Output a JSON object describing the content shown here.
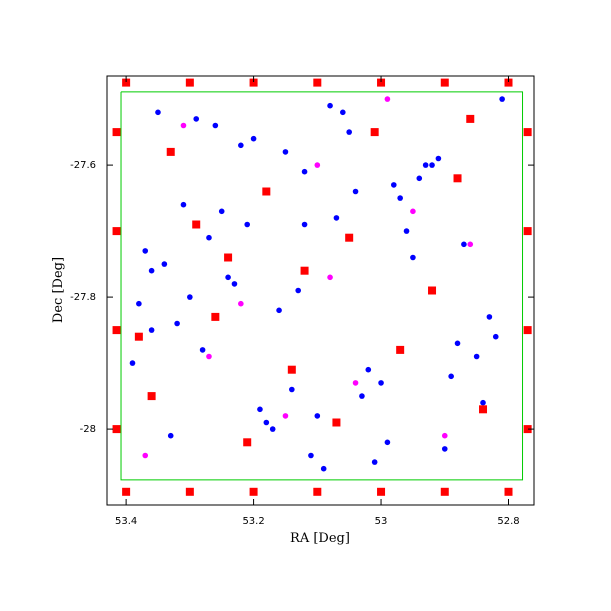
{
  "chart_data": {
    "type": "scatter",
    "xlabel": "RA [Deg]",
    "ylabel": "Dec [Deg]",
    "xlim": [
      53.43,
      52.76
    ],
    "ylim": [
      -28.115,
      -27.465
    ],
    "xticks": [
      53.4,
      53.2,
      53,
      52.8
    ],
    "yticks": [
      -27.6,
      -27.8,
      -28
    ],
    "series": [
      {
        "color": "#0000ff",
        "marker": "circle",
        "x": [
          53.35,
          53.12,
          52.95,
          53.28,
          52.84,
          53.05,
          53.21,
          53.38,
          52.9,
          53.15,
          53.02,
          53.31,
          52.81,
          53.24,
          53.09,
          52.98,
          53.36,
          53.18,
          52.87,
          53.26,
          53.0,
          53.13,
          52.93,
          53.33,
          53.07,
          52.83,
          53.22,
          53.39,
          52.96,
          53.11,
          53.29,
          52.88,
          53.04,
          53.19,
          53.34,
          52.91,
          53.16,
          52.99,
          53.25,
          52.85,
          53.08,
          53.37,
          53.14,
          52.94,
          53.3,
          53.01,
          53.2,
          52.82,
          53.27,
          53.1,
          52.97,
          53.32,
          53.06,
          52.89,
          53.23,
          53.17,
          52.92,
          53.36,
          53.03,
          53.12
        ],
        "y": [
          -27.52,
          -27.61,
          -27.74,
          -27.88,
          -27.96,
          -27.55,
          -27.69,
          -27.81,
          -28.03,
          -27.58,
          -27.91,
          -27.66,
          -27.5,
          -27.77,
          -28.06,
          -27.63,
          -27.85,
          -27.99,
          -27.72,
          -27.54,
          -27.93,
          -27.79,
          -27.6,
          -28.01,
          -27.68,
          -27.83,
          -27.57,
          -27.9,
          -27.7,
          -28.04,
          -27.53,
          -27.87,
          -27.64,
          -27.97,
          -27.75,
          -27.59,
          -27.82,
          -28.02,
          -27.67,
          -27.89,
          -27.51,
          -27.73,
          -27.94,
          -27.62,
          -27.8,
          -28.05,
          -27.56,
          -27.86,
          -27.71,
          -27.98,
          -27.65,
          -27.84,
          -27.52,
          -27.92,
          -27.78,
          -28.0,
          -27.6,
          -27.76,
          -27.95,
          -27.69
        ]
      },
      {
        "color": "#ff0000",
        "marker": "square",
        "x": [
          53.4,
          53.3,
          53.2,
          53.1,
          53.0,
          52.9,
          52.8,
          53.4,
          53.3,
          53.2,
          53.1,
          53.0,
          52.9,
          52.8,
          53.415,
          53.415,
          53.415,
          53.415,
          52.77,
          52.77,
          52.77,
          52.77,
          53.33,
          53.18,
          53.05,
          52.88,
          53.26,
          52.97,
          53.12,
          53.36,
          52.84,
          53.21,
          53.01,
          53.29,
          52.92,
          53.14,
          53.07,
          52.86,
          53.24,
          53.38
        ],
        "y": [
          -27.475,
          -27.475,
          -27.475,
          -27.475,
          -27.475,
          -27.475,
          -27.475,
          -28.095,
          -28.095,
          -28.095,
          -28.095,
          -28.095,
          -28.095,
          -28.095,
          -27.55,
          -27.7,
          -27.85,
          -28.0,
          -27.55,
          -27.7,
          -27.85,
          -28.0,
          -27.58,
          -27.64,
          -27.71,
          -27.62,
          -27.83,
          -27.88,
          -27.76,
          -27.95,
          -27.97,
          -28.02,
          -27.55,
          -27.69,
          -27.79,
          -27.91,
          -27.99,
          -27.53,
          -27.74,
          -27.86
        ]
      },
      {
        "color": "#ff00ff",
        "marker": "circle",
        "x": [
          53.31,
          53.1,
          52.95,
          53.22,
          52.86,
          53.04,
          53.37,
          53.15,
          52.99,
          53.27,
          52.9,
          53.08
        ],
        "y": [
          -27.54,
          -27.6,
          -27.67,
          -27.81,
          -27.72,
          -27.93,
          -28.04,
          -27.98,
          -27.5,
          -27.89,
          -28.01,
          -27.77
        ]
      },
      {
        "color": "#00cc00",
        "marker": "line",
        "x": [
          53.408,
          52.778,
          52.778,
          53.408,
          53.408
        ],
        "y": [
          -27.489,
          -27.489,
          -28.077,
          -28.077,
          -27.489
        ]
      }
    ]
  }
}
